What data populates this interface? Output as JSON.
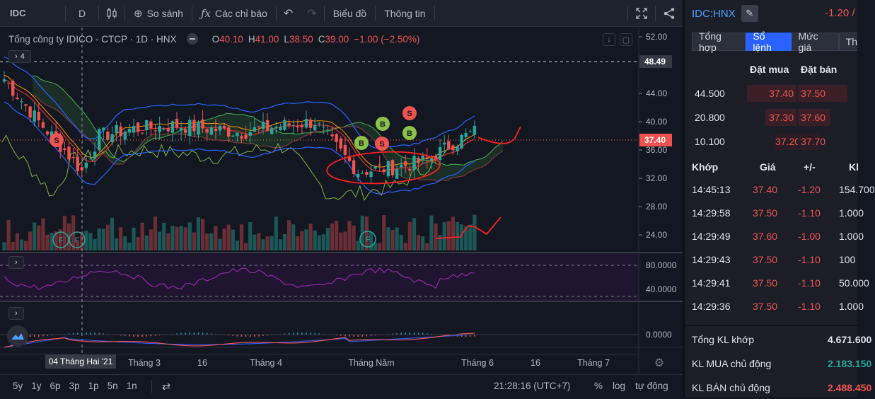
{
  "toolbar": {
    "symbol": "IDC",
    "interval": "D",
    "compare": "So sánh",
    "indicators": "Các chỉ báo",
    "chart_type": "Biểu đồ",
    "info": "Thông tin"
  },
  "legend": {
    "title": "Tổng công ty IDICO - CTCP · 1D · HNX",
    "o_label": "O",
    "o_value": "40.10",
    "h_label": "H",
    "h_value": "41.00",
    "l_label": "L",
    "l_value": "38.50",
    "c_label": "C",
    "c_value": "39.00",
    "change": "−1.00 (−2.50%)",
    "indicator_count": "4"
  },
  "price_axis": {
    "ticks": [
      "52.00",
      "48.49",
      "44.00",
      "40.00",
      "37.40",
      "36.00",
      "32.00",
      "28.00",
      "24.00"
    ],
    "highlight_high": "48.49",
    "current_price": "37.40"
  },
  "rsi_axis": {
    "ticks": [
      "80.0000",
      "40.0000"
    ]
  },
  "macd_axis": {
    "ticks": [
      "0.0000"
    ]
  },
  "time_axis": {
    "crosshair_label": "04 Tháng Hai '21",
    "ticks": [
      "Tháng 3",
      "16",
      "Tháng 4",
      "Tháng Năm",
      "Tháng 6",
      "16",
      "Tháng 7"
    ]
  },
  "markers": {
    "buy": "B",
    "sell": "S",
    "f": "F"
  },
  "bottom": {
    "ranges": [
      "5y",
      "1y",
      "6p",
      "3p",
      "1p",
      "5n",
      "1n"
    ],
    "time": "21:28:16 (UTC+7)",
    "percent": "%",
    "log": "log",
    "auto": "tự động"
  },
  "panel": {
    "symbol": "IDC:HNX",
    "change": "-1.20 /",
    "tabs": [
      "Tổng hợp",
      "Sổ lệnh",
      "Mức giá",
      "Th"
    ],
    "orderbook_headers": {
      "bid": "Đặt mua",
      "ask": "Đặt bán"
    },
    "orderbook": [
      {
        "vol": "44.500",
        "bid": "37.40",
        "ask": "37.50"
      },
      {
        "vol": "20.800",
        "bid": "37.30",
        "ask": "37.60"
      },
      {
        "vol": "10.100",
        "bid": "37.20",
        "ask": "37.70"
      }
    ],
    "trade_headers": {
      "time": "Khớp",
      "price": "Giá",
      "change": "+/-",
      "vol": "Kl"
    },
    "trades": [
      {
        "time": "14:45:13",
        "price": "37.40",
        "change": "-1.20",
        "vol": "154.700"
      },
      {
        "time": "14:29:58",
        "price": "37.50",
        "change": "-1.10",
        "vol": "1.000"
      },
      {
        "time": "14:29:49",
        "price": "37.60",
        "change": "-1.00",
        "vol": "1.000"
      },
      {
        "time": "14:29:43",
        "price": "37.50",
        "change": "-1.10",
        "vol": "100"
      },
      {
        "time": "14:29:41",
        "price": "37.50",
        "change": "-1.10",
        "vol": "50.000"
      },
      {
        "time": "14:29:36",
        "price": "37.50",
        "change": "-1.10",
        "vol": "1.000"
      }
    ],
    "summary": [
      {
        "label": "Tổng KL khớp",
        "value": "4.671.600"
      },
      {
        "label": "KL MUA chủ động",
        "value": "2.183.150"
      },
      {
        "label": "KL BÁN chủ động",
        "value": "2.488.450"
      }
    ]
  },
  "colors": {
    "up": "#26a69a",
    "down": "#ef5350",
    "accent": "#2962ff",
    "background": "#131722"
  }
}
